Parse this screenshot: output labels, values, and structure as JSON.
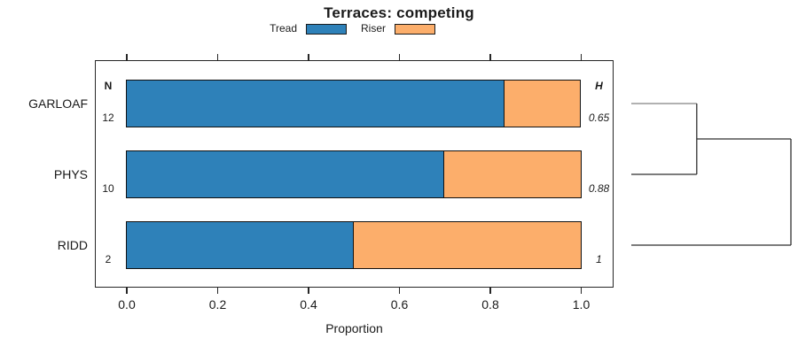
{
  "title": "Terraces: competing",
  "legend": {
    "items": [
      {
        "label": "Tread",
        "color": "#2E81B9"
      },
      {
        "label": "Riser",
        "color": "#FCAE6B"
      }
    ]
  },
  "chart_data": {
    "type": "bar",
    "orientation": "horizontal",
    "stacked": true,
    "title": "Terraces: competing",
    "xlabel": "Proportion",
    "xlim": [
      0,
      1
    ],
    "x_ticks": [
      0.0,
      0.2,
      0.4,
      0.6,
      0.8,
      1.0
    ],
    "x_tick_labels": [
      "0.0",
      "0.2",
      "0.4",
      "0.6",
      "0.8",
      "1.0"
    ],
    "grid": false,
    "legend_position": "top-center",
    "categories": [
      "GARLOAF",
      "PHYS",
      "RIDD"
    ],
    "series": [
      {
        "name": "Tread",
        "color": "#2E81B9",
        "values": [
          0.833,
          0.7,
          0.5
        ]
      },
      {
        "name": "Riser",
        "color": "#FCAE6B",
        "values": [
          0.167,
          0.3,
          0.5
        ]
      }
    ],
    "n_column": {
      "header": "N",
      "values": [
        "12",
        "10",
        "2"
      ]
    },
    "h_column": {
      "header": "H",
      "values": [
        "0.65",
        "0.88",
        "1"
      ]
    },
    "dendrogram": {
      "order": [
        "GARLOAF",
        "PHYS",
        "RIDD"
      ],
      "first_merge": [
        "GARLOAF",
        "PHYS"
      ],
      "merge_heights": [
        0.41,
        1.0
      ],
      "line_colors": {
        "garloaf_leaf": "#828282",
        "default": "#2f2f2f"
      }
    }
  }
}
